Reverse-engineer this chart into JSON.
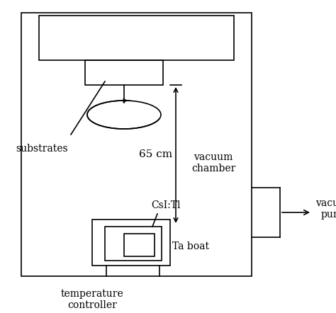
{
  "bg_color": "#ffffff",
  "line_color": "#000000",
  "lw": 1.2,
  "fig_width": 4.74,
  "fig_height": 4.42,
  "dpi": 100,
  "labels": {
    "substrates": "substrates",
    "vacuum_chamber": "vacuum\nchamber",
    "distance": "65 cm",
    "csi": "CsI:Tl",
    "ta_boat": "Ta boat",
    "temp_ctrl": "temperature\ncontroller",
    "vac_pump": "vacuum\npump"
  }
}
